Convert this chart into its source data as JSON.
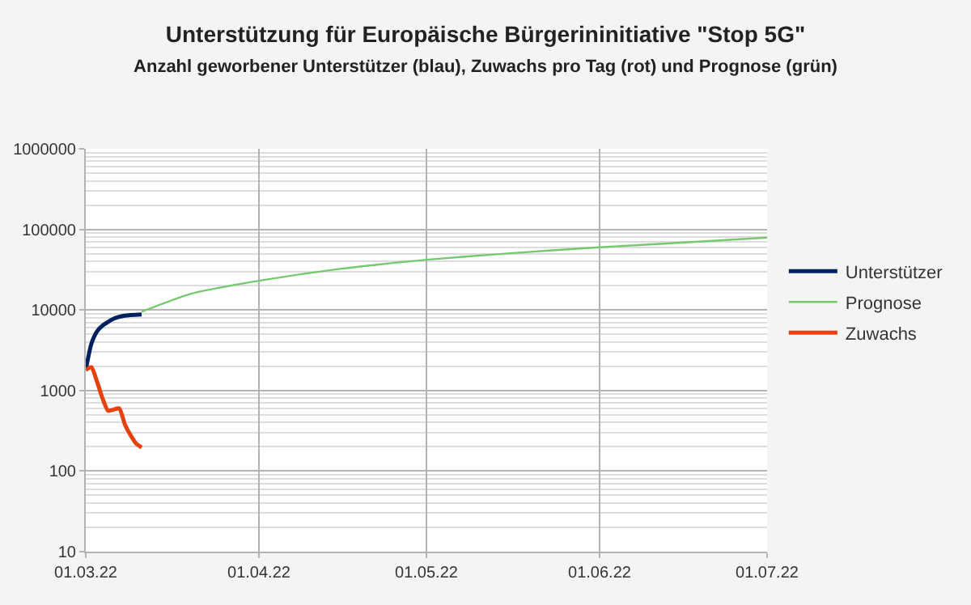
{
  "chart_data": {
    "type": "line",
    "title": "Unterstützung für Europäische Bürgerininitiative \"Stop 5G\"",
    "subtitle": "Anzahl geworbener Unterstützer (blau), Zuwachs pro Tag (rot) und Prognose (grün)",
    "series": [
      {
        "name": "Unterstützer",
        "color": "#002060",
        "x": [
          "2022-03-01",
          "2022-03-02",
          "2022-03-03",
          "2022-03-04",
          "2022-03-06",
          "2022-03-08",
          "2022-03-11"
        ],
        "values": [
          1800,
          3800,
          5400,
          6400,
          7800,
          8500,
          8800
        ]
      },
      {
        "name": "Prognose",
        "color": "#77c970",
        "x": [
          "2022-03-11",
          "2022-03-20",
          "2022-04-01",
          "2022-04-15",
          "2022-05-01",
          "2022-05-15",
          "2022-06-01",
          "2022-06-15",
          "2022-07-01"
        ],
        "values": [
          9500,
          16000,
          23000,
          32000,
          42000,
          50000,
          60000,
          68000,
          79000
        ]
      },
      {
        "name": "Zuwachs",
        "color": "#e8400c",
        "x": [
          "2022-03-01",
          "2022-03-02",
          "2022-03-03",
          "2022-03-04",
          "2022-03-05",
          "2022-03-06",
          "2022-03-07",
          "2022-03-08",
          "2022-03-09",
          "2022-03-10",
          "2022-03-11"
        ],
        "values": [
          1800,
          1950,
          1300,
          800,
          560,
          580,
          600,
          380,
          280,
          220,
          196
        ]
      }
    ],
    "xlim": [
      "2022-03-01",
      "2022-07-01"
    ],
    "xticks": [
      {
        "value": "2022-03-01",
        "label": "01.03.22"
      },
      {
        "value": "2022-04-01",
        "label": "01.04.22"
      },
      {
        "value": "2022-05-01",
        "label": "01.05.22"
      },
      {
        "value": "2022-06-01",
        "label": "01.06.22"
      },
      {
        "value": "2022-07-01",
        "label": "01.07.22"
      }
    ],
    "log": "y",
    "ylim": [
      10,
      1000000
    ],
    "yticks": [
      10,
      100,
      1000,
      10000,
      100000,
      1000000
    ],
    "grid": true,
    "legend": "right",
    "line_style": "solid",
    "marker": "none"
  }
}
